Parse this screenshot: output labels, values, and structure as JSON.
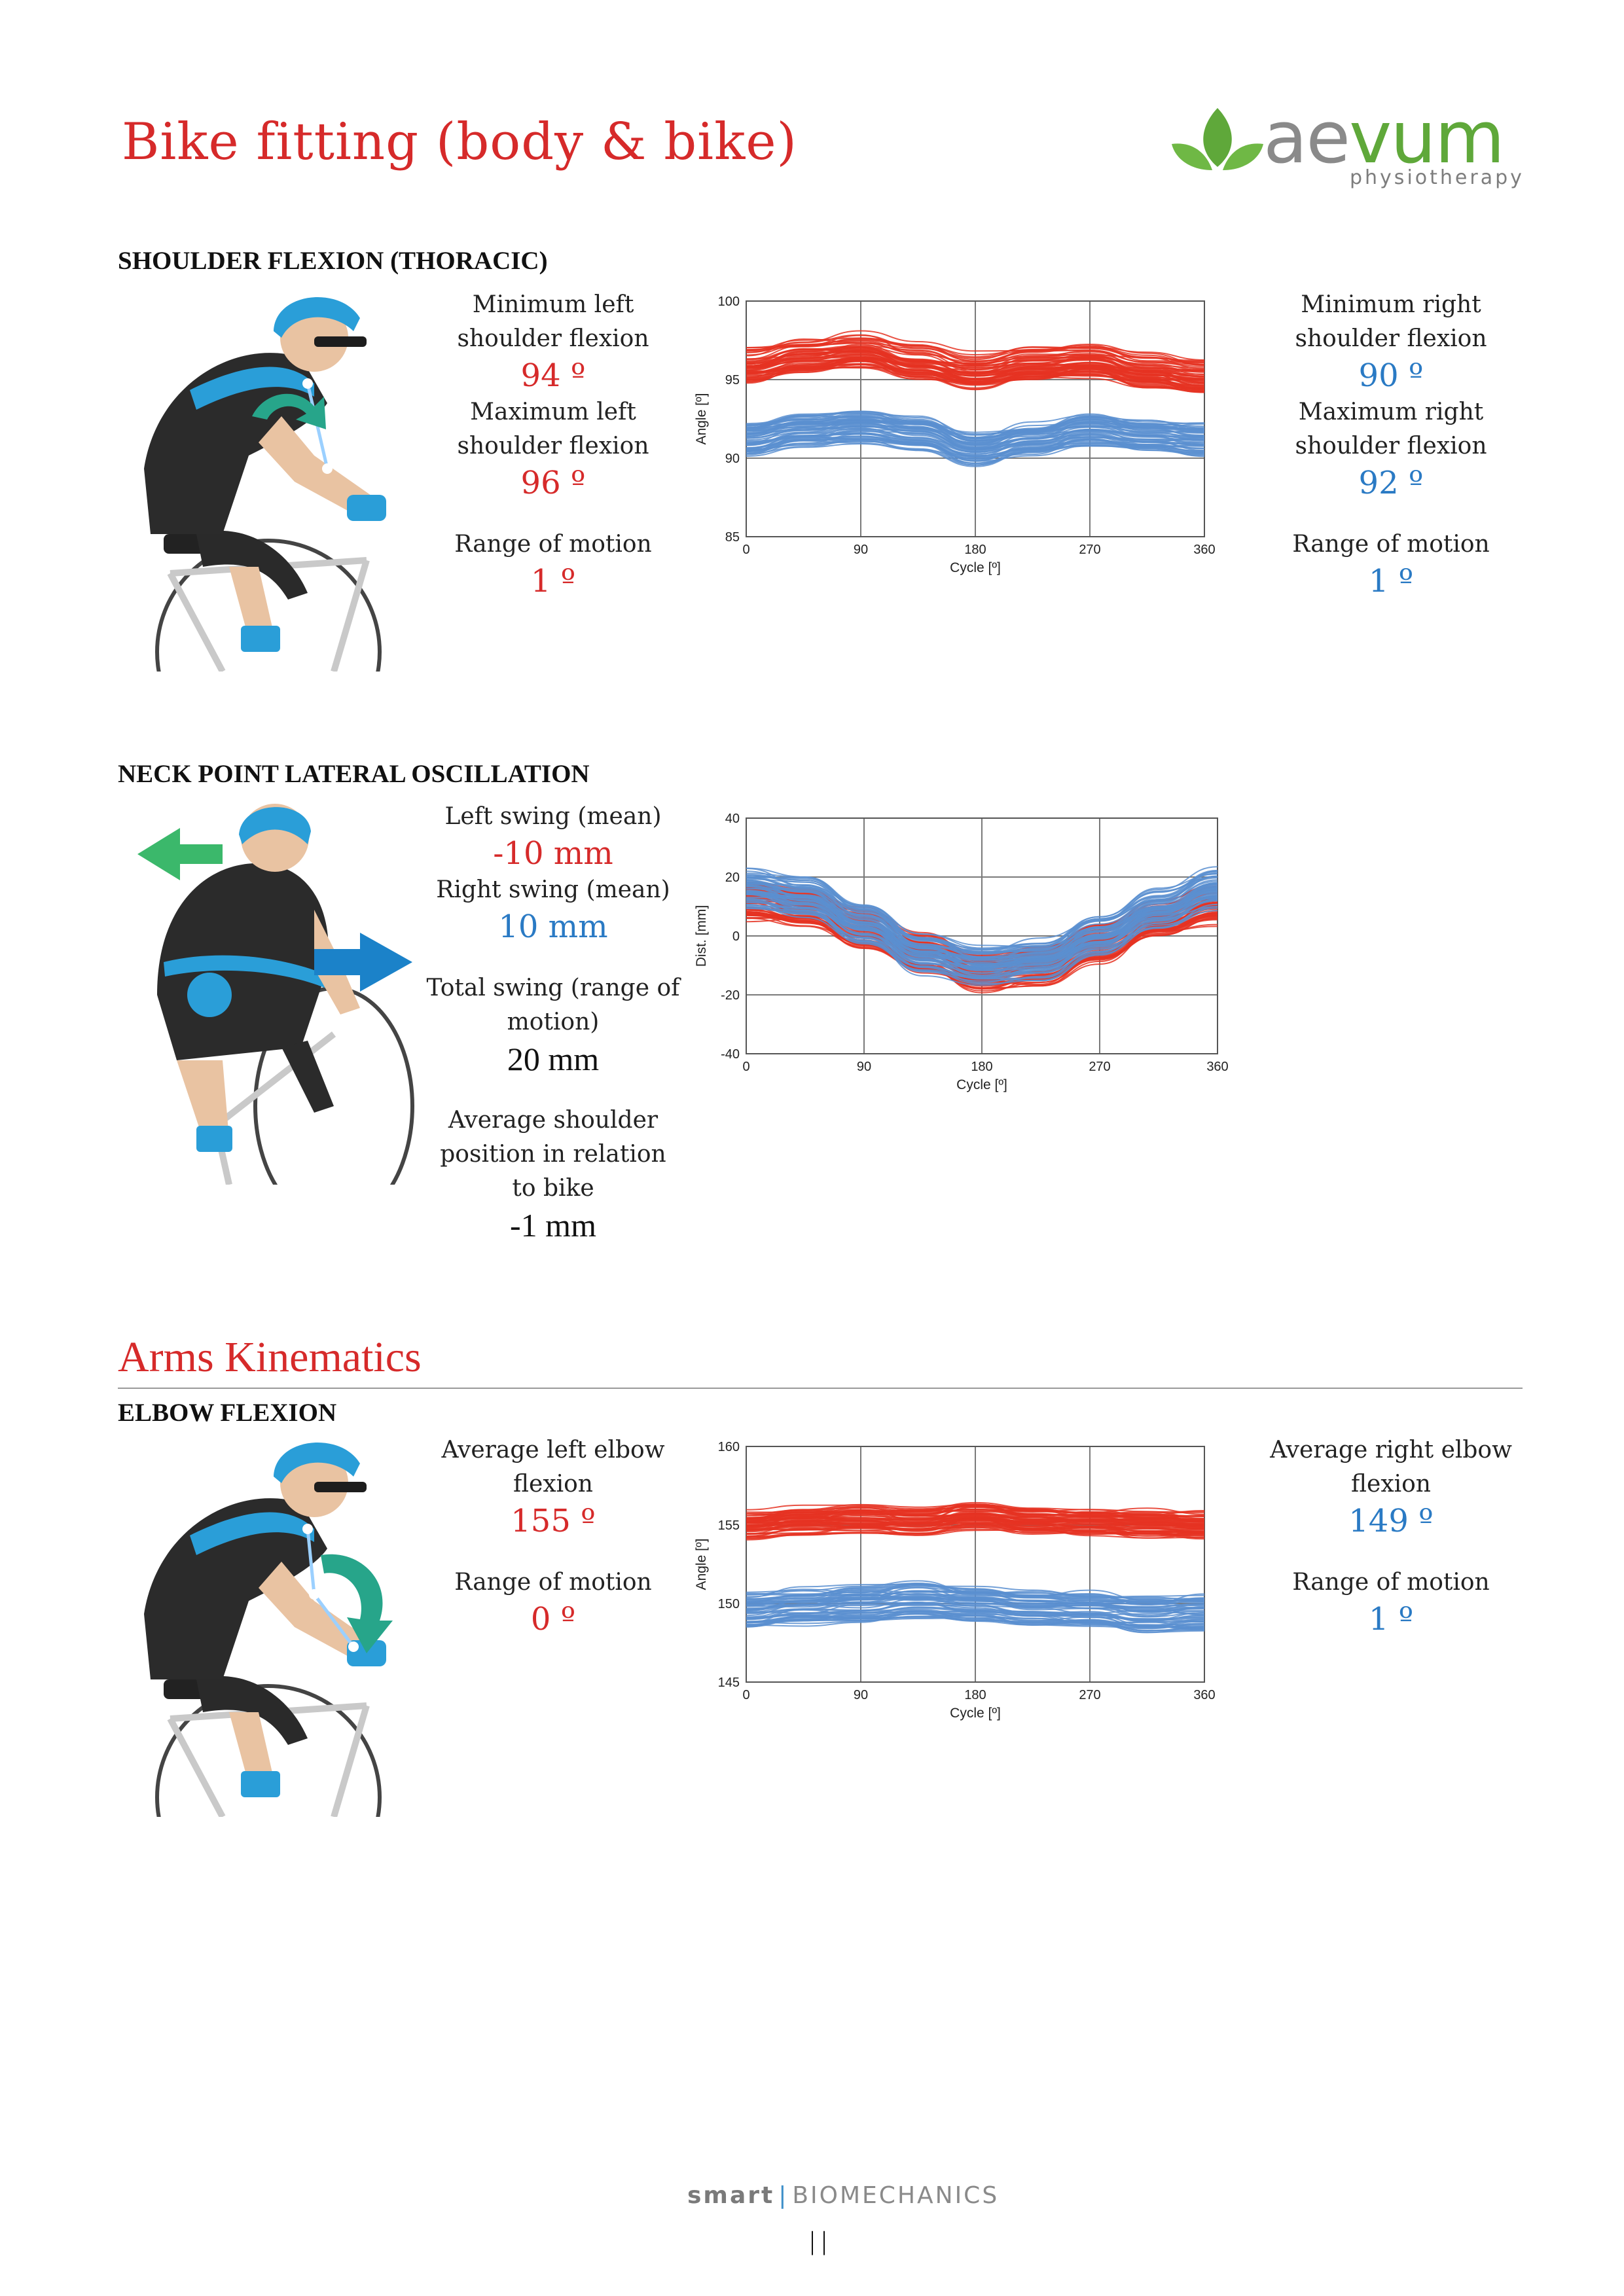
{
  "header": {
    "title": "Bike fitting (body & bike)",
    "logo": {
      "name": "aevum",
      "name_left": "ae",
      "name_right": "vum",
      "subtitle": "physiotherapy"
    }
  },
  "colors": {
    "left": "#d62a2a",
    "right": "#2a7ac4",
    "accent": "#d62a2a",
    "logo_green": "#5fa83a"
  },
  "shoulder": {
    "heading": "SHOULDER FLEXION (THORACIC)",
    "left": {
      "min_label": "Minimum left shoulder flexion",
      "min_value": "94 º",
      "max_label": "Maximum left shoulder flexion",
      "max_value": "96 º",
      "rom_label": "Range of motion",
      "rom_value": "1 º"
    },
    "right": {
      "min_label": "Minimum right shoulder flexion",
      "min_value": "90 º",
      "max_label": "Maximum right shoulder flexion",
      "max_value": "92 º",
      "rom_label": "Range of motion",
      "rom_value": "1 º"
    }
  },
  "neck": {
    "heading": "NECK POINT LATERAL OSCILLATION",
    "left_label": "Left swing (mean)",
    "left_value": "-10 mm",
    "right_label": "Right swing (mean)",
    "right_value": "10 mm",
    "total_label": "Total swing (range of motion)",
    "total_value": "20 mm",
    "avg_label": "Average shoulder position in relation to bike",
    "avg_value": "-1 mm"
  },
  "arms": {
    "section_title": "Arms Kinematics",
    "heading": "ELBOW FLEXION",
    "left": {
      "avg_label": "Average left elbow flexion",
      "avg_value": "155 º",
      "rom_label": "Range of motion",
      "rom_value": "0 º"
    },
    "right": {
      "avg_label": "Average right elbow flexion",
      "avg_value": "149 º",
      "rom_label": "Range of motion",
      "rom_value": "1 º"
    }
  },
  "footer": {
    "brand_bold": "smart",
    "brand_rest": "BIOMECHANICS",
    "page_marker": "| |"
  },
  "chart_data": [
    {
      "type": "line",
      "title": "Shoulder flexion",
      "xlabel": "Cycle [º]",
      "ylabel": "Angle [º]",
      "xlim": [
        0,
        360
      ],
      "ylim": [
        85,
        100
      ],
      "xticks": [
        0,
        90,
        180,
        270,
        360
      ],
      "yticks": [
        85,
        90,
        95,
        100
      ],
      "x": [
        0,
        45,
        90,
        135,
        180,
        225,
        270,
        315,
        360
      ],
      "series": [
        {
          "name": "Left",
          "color": "#e53322",
          "values": [
            96.0,
            96.6,
            96.9,
            96.2,
            95.6,
            96.1,
            96.3,
            95.7,
            95.3
          ],
          "spread": 1.0
        },
        {
          "name": "Right",
          "color": "#5b8fd0",
          "values": [
            91.2,
            91.8,
            92.0,
            91.6,
            90.6,
            91.2,
            91.8,
            91.4,
            91.2
          ],
          "spread": 0.9
        }
      ]
    },
    {
      "type": "line",
      "title": "Neck point lateral oscillation",
      "xlabel": "Cycle [º]",
      "ylabel": "Dist. [mm]",
      "xlim": [
        0,
        360
      ],
      "ylim": [
        -40,
        40
      ],
      "xticks": [
        0,
        90,
        180,
        270,
        360
      ],
      "yticks": [
        -40,
        -20,
        0,
        20,
        40
      ],
      "x": [
        0,
        45,
        90,
        135,
        180,
        225,
        270,
        315,
        360
      ],
      "series": [
        {
          "name": "Left",
          "color": "#e53322",
          "values": [
            12,
            10,
            3,
            -6,
            -12,
            -10,
            -2,
            6,
            11
          ],
          "spread": 6
        },
        {
          "name": "Right",
          "color": "#5b8fd0",
          "values": [
            16,
            13,
            4,
            -6,
            -10,
            -8,
            0,
            9,
            16
          ],
          "spread": 6
        }
      ]
    },
    {
      "type": "line",
      "title": "Elbow flexion",
      "xlabel": "Cycle [º]",
      "ylabel": "Angle [º]",
      "xlim": [
        0,
        360
      ],
      "ylim": [
        145,
        160
      ],
      "xticks": [
        0,
        90,
        180,
        270,
        360
      ],
      "yticks": [
        145,
        150,
        155,
        160
      ],
      "x": [
        0,
        45,
        90,
        135,
        180,
        225,
        270,
        315,
        360
      ],
      "series": [
        {
          "name": "Left",
          "color": "#e53322",
          "values": [
            155.0,
            155.3,
            155.4,
            155.2,
            155.6,
            155.3,
            155.2,
            155.1,
            155.0
          ],
          "spread": 0.8
        },
        {
          "name": "Right",
          "color": "#5b8fd0",
          "values": [
            149.5,
            149.8,
            150.0,
            150.2,
            150.0,
            149.7,
            149.6,
            149.3,
            149.4
          ],
          "spread": 1.0
        }
      ]
    }
  ]
}
